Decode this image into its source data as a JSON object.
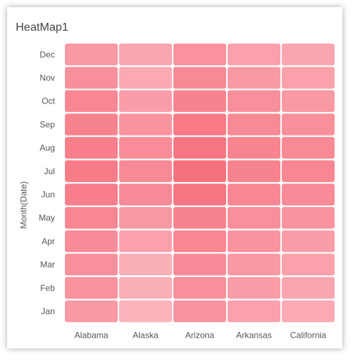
{
  "chart_data": {
    "type": "heatmap",
    "title": "HeatMap1",
    "ylabel": "Month(Date)",
    "xlabel": "",
    "x_categories": [
      "Alabama",
      "Alaska",
      "Arizona",
      "Arkansas",
      "California"
    ],
    "y_categories": [
      "Jan",
      "Feb",
      "Mar",
      "Apr",
      "May",
      "Jun",
      "Jul",
      "Aug",
      "Sep",
      "Oct",
      "Nov",
      "Dec"
    ],
    "values": [
      [
        0.55,
        0.25,
        0.6,
        0.45,
        0.35
      ],
      [
        0.6,
        0.3,
        0.65,
        0.5,
        0.4
      ],
      [
        0.65,
        0.3,
        0.7,
        0.55,
        0.45
      ],
      [
        0.7,
        0.45,
        0.75,
        0.6,
        0.5
      ],
      [
        0.75,
        0.55,
        0.8,
        0.65,
        0.6
      ],
      [
        0.85,
        0.7,
        0.95,
        0.75,
        0.7
      ],
      [
        0.88,
        0.72,
        1.0,
        0.8,
        0.75
      ],
      [
        0.85,
        0.68,
        0.95,
        0.78,
        0.72
      ],
      [
        0.8,
        0.6,
        0.9,
        0.72,
        0.65
      ],
      [
        0.75,
        0.5,
        0.8,
        0.65,
        0.55
      ],
      [
        0.65,
        0.35,
        0.72,
        0.55,
        0.45
      ],
      [
        0.55,
        0.4,
        0.62,
        0.45,
        0.4
      ]
    ],
    "color_low": "#fdc9d1",
    "color_high": "#f6717e",
    "grid": false,
    "legend": "none"
  }
}
